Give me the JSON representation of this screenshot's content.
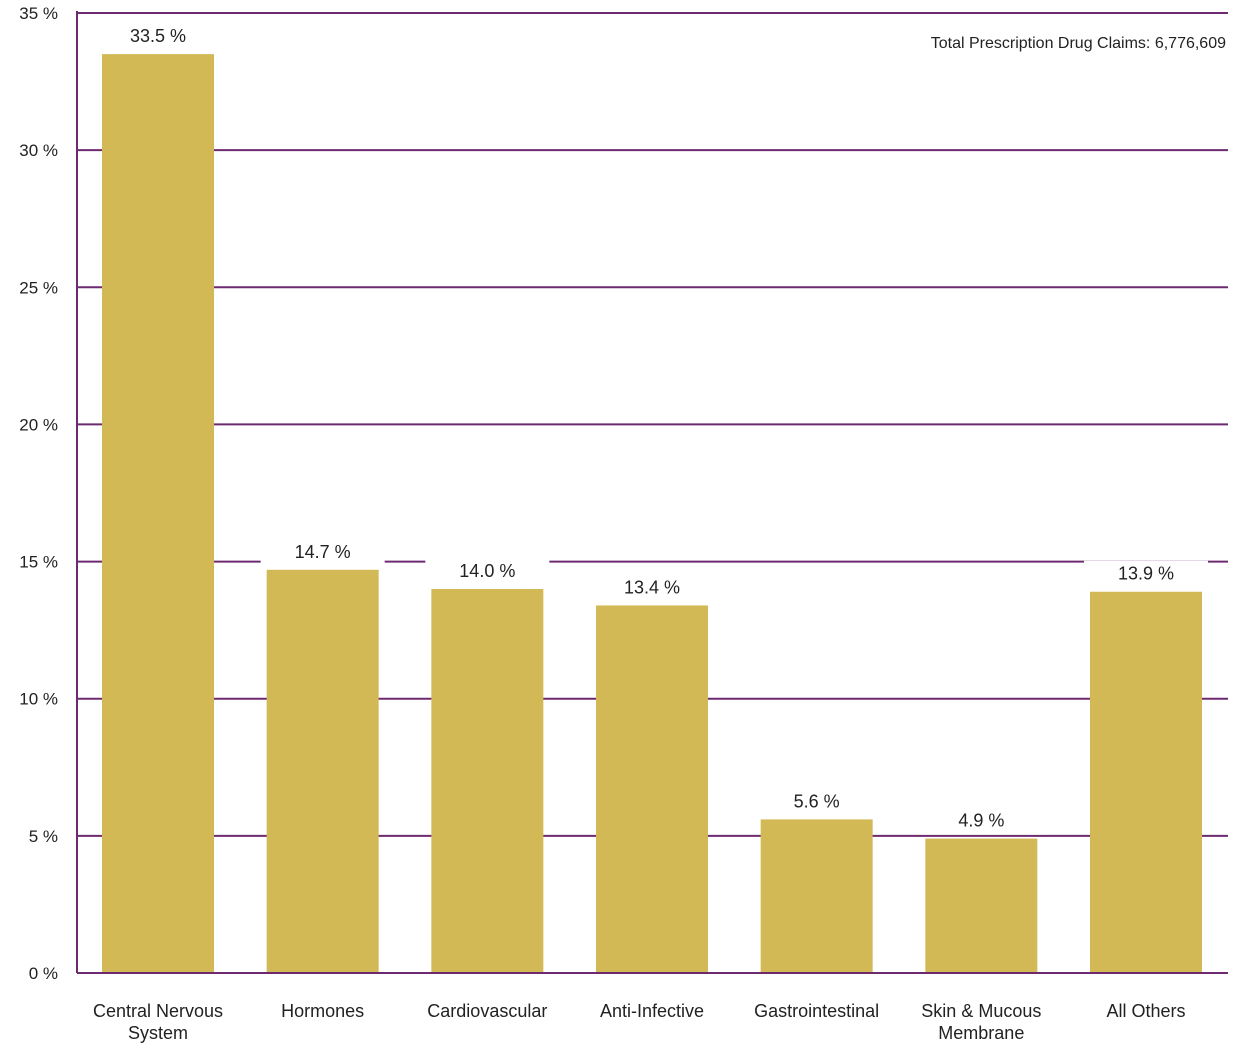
{
  "chart_data": {
    "type": "bar",
    "categories": [
      [
        "Central Nervous",
        "System"
      ],
      [
        "Hormones"
      ],
      [
        "Cardiovascular"
      ],
      [
        "Anti-Infective"
      ],
      [
        "Gastrointestinal"
      ],
      [
        "Skin & Mucous",
        "Membrane"
      ],
      [
        "All Others"
      ]
    ],
    "values": [
      33.5,
      14.7,
      14.0,
      13.4,
      5.6,
      4.9,
      13.9
    ],
    "value_labels": [
      "33.5 %",
      "14.7 %",
      "14.0 %",
      "13.4 %",
      "5.6 %",
      "4.9 %",
      "13.9 %"
    ],
    "y_ticks": [
      0,
      5,
      10,
      15,
      20,
      25,
      30,
      35
    ],
    "y_tick_labels": [
      "0 %",
      "5 %",
      "10 %",
      "15 %",
      "20 %",
      "25 %",
      "30 %",
      "35 %"
    ],
    "ylim": [
      0,
      35
    ],
    "grid": true,
    "title": "",
    "xlabel": "",
    "ylabel": "",
    "annotation": "Total Prescription Drug Claims: 6,776,609",
    "colors": {
      "bar": "#D2B955",
      "grid": "#6E2A70",
      "axis": "#6E2A70"
    }
  }
}
